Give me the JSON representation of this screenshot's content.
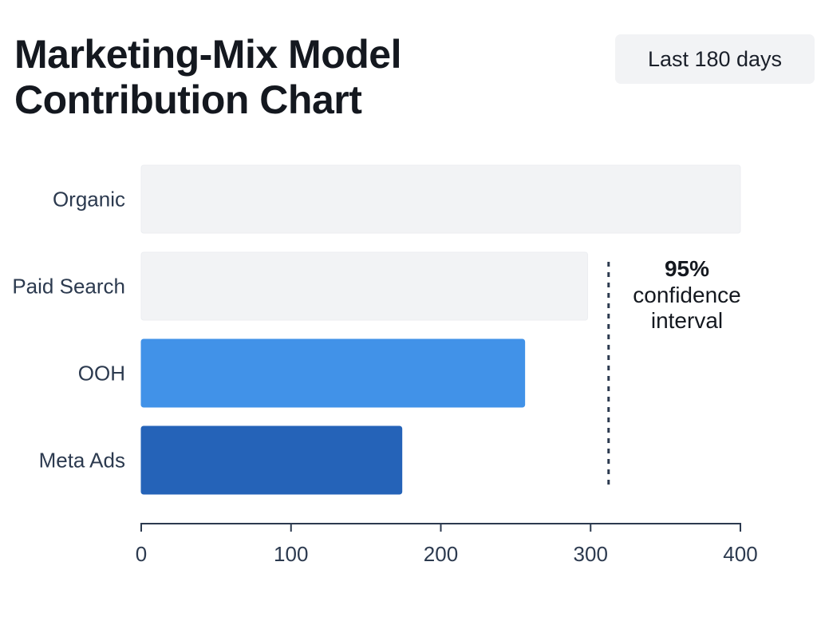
{
  "header": {
    "title": "Marketing-Mix Model Contribution Chart",
    "range_label": "Last 180 days"
  },
  "chart_data": {
    "type": "bar",
    "orientation": "horizontal",
    "title": "Marketing-Mix Model Contribution Chart",
    "xlabel": "",
    "ylabel": "",
    "categories": [
      "Organic",
      "Paid Search",
      "OOH",
      "Meta Ads"
    ],
    "values": [
      400,
      298,
      256,
      174
    ],
    "bar_colors": [
      "#f2f3f5",
      "#f2f3f5",
      "#4192e8",
      "#2563b8"
    ],
    "xlim": [
      0,
      400
    ],
    "xticks": [
      0,
      100,
      200,
      300,
      400
    ],
    "grid": false,
    "annotations": [
      {
        "kind": "vertical-dashed-line",
        "x": 312,
        "label_lines": [
          "95%",
          "confidence",
          "interval"
        ]
      }
    ]
  },
  "colors": {
    "axis": "#2c3a4f",
    "text": "#14181f",
    "badge_bg": "#f2f3f5"
  }
}
